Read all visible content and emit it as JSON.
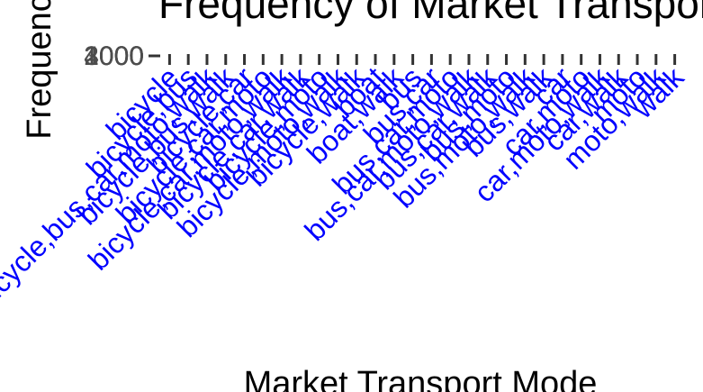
{
  "chart_data": {
    "type": "bar",
    "title": "Frequency of Market Transport Mode",
    "xlabel": "Market Transport Mode",
    "ylabel": "Frequency",
    "categories": [
      "bicycle",
      "bicycle,bus",
      "bicycle,bus,car,moto,walk",
      "bicycle,bus,walk",
      "bicycle,car",
      "bicycle,car,moto",
      "bicycle,car,moto,walk",
      "bicycle,car,walk",
      "bicycle,moto",
      "bicycle,moto,walk",
      "bicycle,walk",
      "boat",
      "boat,walk",
      "bus",
      "bus,car",
      "bus,car,moto",
      "bus,car,moto,walk",
      "bus,car,walk",
      "bus,moto",
      "bus,moto,walk",
      "bus,walk",
      "car",
      "car,moto",
      "car,moto,walk",
      "car,walk",
      "moto",
      "moto,walk",
      "walk"
    ],
    "values": [
      0,
      0,
      0,
      0,
      0,
      0,
      0,
      0,
      0,
      0,
      0,
      0,
      0,
      0,
      0,
      0,
      0,
      0,
      0,
      0,
      0,
      0,
      0,
      0,
      0,
      0,
      0,
      0
    ],
    "yticks": [
      "0",
      "1000",
      "2000",
      "3000",
      "4000"
    ],
    "ylim": [
      0,
      4000
    ],
    "tick_label_color": "#0000ff",
    "axis_text_color": "#4d4d4d",
    "grid": false,
    "legend": "none"
  }
}
